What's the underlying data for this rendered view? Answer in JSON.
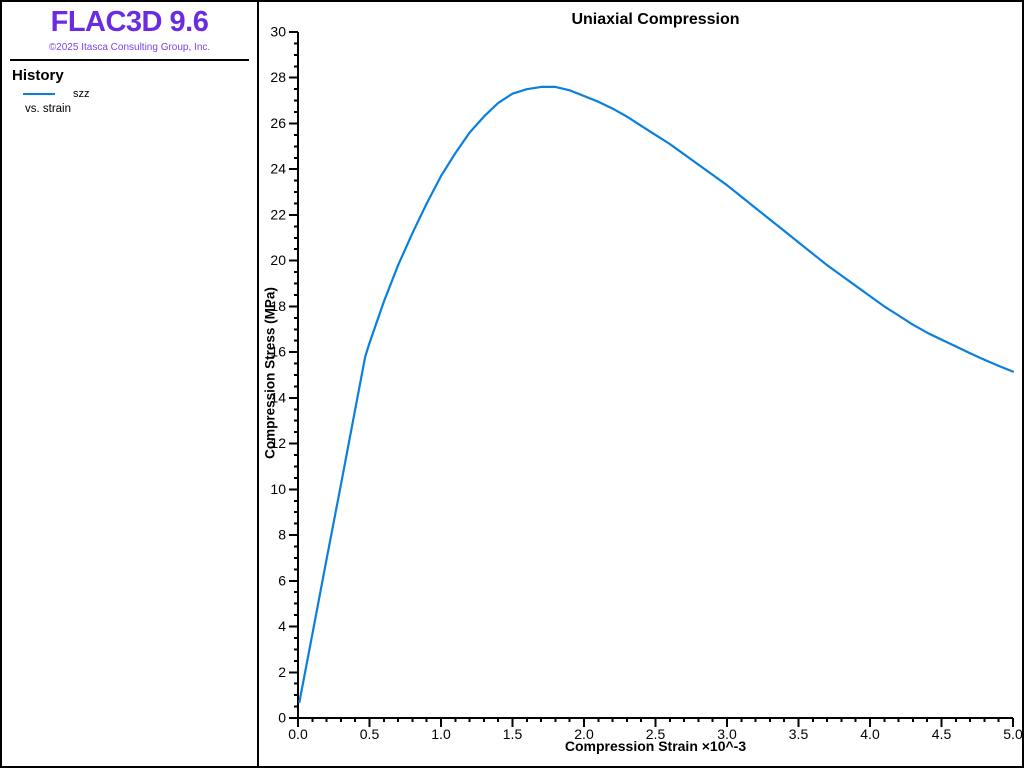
{
  "window": {
    "background": "#ffffff",
    "border_color": "#000000"
  },
  "sidebar": {
    "logo": "FLAC3D 9.6",
    "logo_color": "#6b2be0",
    "copyright": "©2025 Itasca Consulting Group, Inc.",
    "copyright_color": "#7b42ee",
    "history_heading": "History",
    "legend": [
      {
        "label": "szz",
        "color": "#0b7fdd"
      }
    ],
    "legend_note": "vs. strain"
  },
  "chart_data": {
    "type": "line",
    "title": "Uniaxial Compression",
    "xlabel": "Compression Strain ×10^-3",
    "ylabel": "Compression Stress (MPa)",
    "xlim": [
      0,
      5
    ],
    "ylim": [
      0,
      30
    ],
    "x_major_step": 0.5,
    "x_minor_step": 0.1,
    "y_major_step": 2,
    "y_minor_step": 0.5,
    "x_ticks": [
      "0.0",
      "0.5",
      "1.0",
      "1.5",
      "2.0",
      "2.5",
      "3.0",
      "3.5",
      "4.0",
      "4.5",
      "5.0"
    ],
    "y_ticks": [
      "0",
      "2",
      "4",
      "6",
      "8",
      "10",
      "12",
      "14",
      "16",
      "18",
      "20",
      "22",
      "24",
      "26",
      "28",
      "30"
    ],
    "grid": false,
    "legend_position": "sidebar",
    "axis_color": "#000000",
    "series": [
      {
        "name": "szz",
        "color": "#0b7fdd",
        "x": [
          0.01,
          0.1,
          0.2,
          0.3,
          0.4,
          0.47,
          0.5,
          0.6,
          0.7,
          0.8,
          0.9,
          1.0,
          1.1,
          1.2,
          1.3,
          1.4,
          1.5,
          1.6,
          1.7,
          1.8,
          1.9,
          2.0,
          2.1,
          2.2,
          2.3,
          2.4,
          2.5,
          2.6,
          2.7,
          2.8,
          2.9,
          3.0,
          3.1,
          3.2,
          3.3,
          3.4,
          3.5,
          3.6,
          3.7,
          3.8,
          3.9,
          4.0,
          4.1,
          4.2,
          4.3,
          4.4,
          4.5,
          4.6,
          4.7,
          4.8,
          4.9,
          5.0
        ],
        "y": [
          0.7,
          3.65,
          6.95,
          10.2,
          13.5,
          15.8,
          16.4,
          18.2,
          19.8,
          21.2,
          22.5,
          23.7,
          24.7,
          25.6,
          26.3,
          26.9,
          27.3,
          27.5,
          27.6,
          27.6,
          27.45,
          27.2,
          26.95,
          26.65,
          26.3,
          25.9,
          25.5,
          25.1,
          24.65,
          24.2,
          23.75,
          23.3,
          22.8,
          22.3,
          21.8,
          21.3,
          20.8,
          20.3,
          19.8,
          19.35,
          18.9,
          18.45,
          18.0,
          17.6,
          17.2,
          16.85,
          16.55,
          16.25,
          15.95,
          15.67,
          15.4,
          15.15
        ]
      }
    ]
  }
}
